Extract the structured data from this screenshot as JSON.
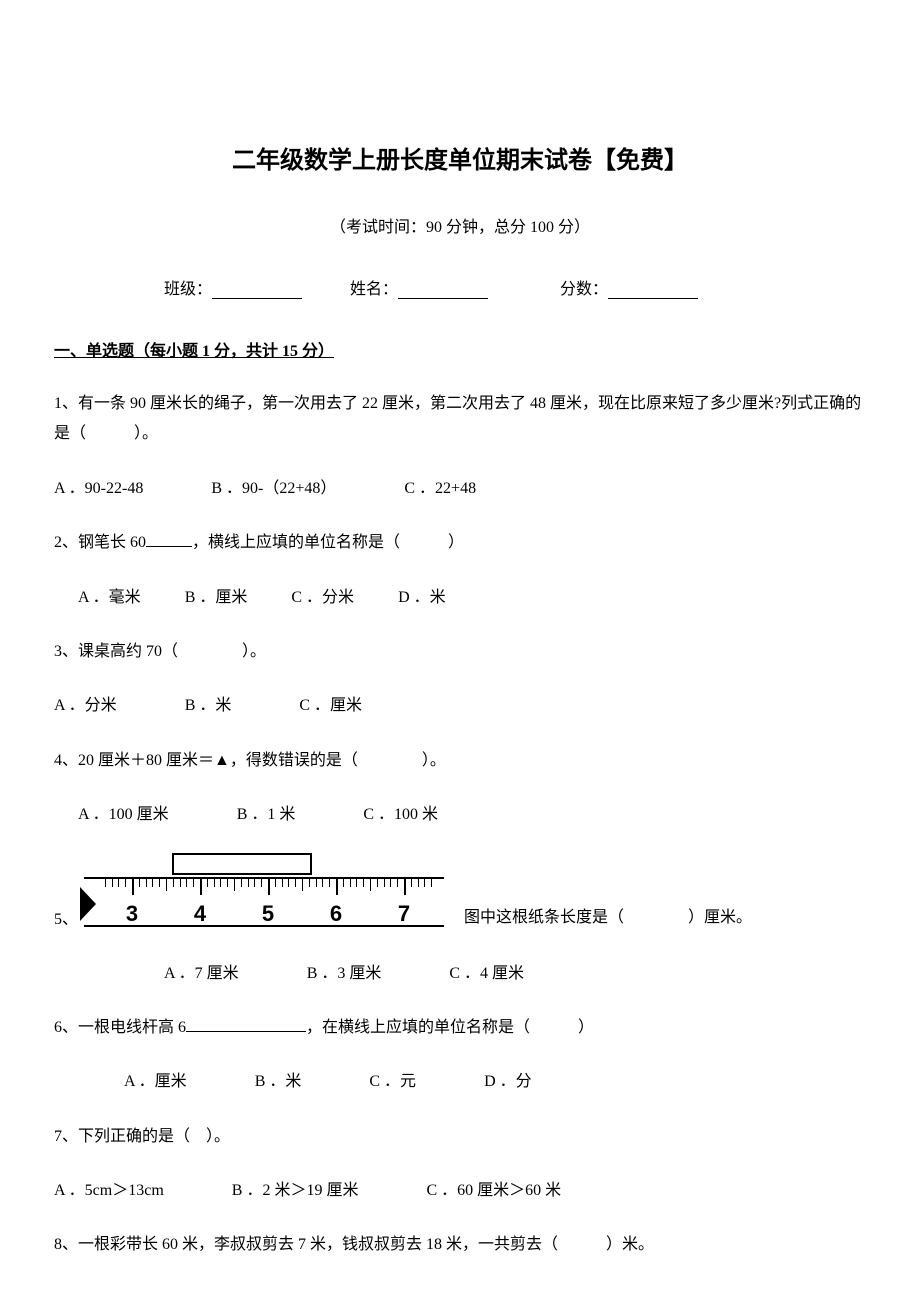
{
  "title": "二年级数学上册长度单位期末试卷【免费】",
  "subtitle": "（考试时间：90 分钟，总分 100 分）",
  "info": {
    "class": "班级：",
    "name": "姓名：",
    "score": "分数："
  },
  "section1": "一、单选题（每小题 1 分，共计 15 分）",
  "q1": {
    "text": "1、有一条 90 厘米长的绳子，第一次用去了 22 厘米，第二次用去了 48 厘米，现在比原来短了多少厘米?列式正确的是（　　　）。",
    "a": "A ．90-22-48",
    "b": "B ．90-（22+48）",
    "c": "C ．22+48"
  },
  "q2": {
    "text_a": "2、钢笔长 60",
    "text_b": "，横线上应填的单位名称是（　　　）",
    "a": "A ．毫米",
    "b": "B ．厘米",
    "c": "C ．分米",
    "d": "D ．米"
  },
  "q3": {
    "text": "3、课桌高约 70（　　　　）。",
    "a": "A ．分米",
    "b": "B ．米",
    "c": "C ．厘米"
  },
  "q4": {
    "text": "4、20 厘米＋80 厘米＝▲，得数错误的是（　　　　）。",
    "a": "A ．100 厘米",
    "b": "B ．1 米",
    "c": "C ．100 米"
  },
  "q5": {
    "num": "5、",
    "tail": "图中这根纸条长度是（　　　　）厘米。",
    "a": "A ．7 厘米",
    "b": "B ．3 厘米",
    "c": "C ．4 厘米",
    "ruler": {
      "numbers": [
        "3",
        "4",
        "5",
        "6",
        "7"
      ],
      "majors_pct": [
        10,
        30,
        50,
        70,
        90
      ],
      "strip_start_cm_idx": 1,
      "strip_width_cm": 2
    }
  },
  "q6": {
    "text_a": "6、一根电线杆高 6",
    "text_b": "，在横线上应填的单位名称是（　　　）",
    "a": "A ．厘米",
    "b": "B ．米",
    "c": "C ．元",
    "d": "D ．分"
  },
  "q7": {
    "text": "7、下列正确的是（　）。",
    "a": "A ．5cm＞13cm",
    "b": "B ．2 米＞19 厘米",
    "c": "C ．60 厘米＞60 米"
  },
  "q8": {
    "text": "8、一根彩带长 60 米，李叔叔剪去 7 米，钱叔叔剪去 18 米，一共剪去（　　　）米。"
  }
}
